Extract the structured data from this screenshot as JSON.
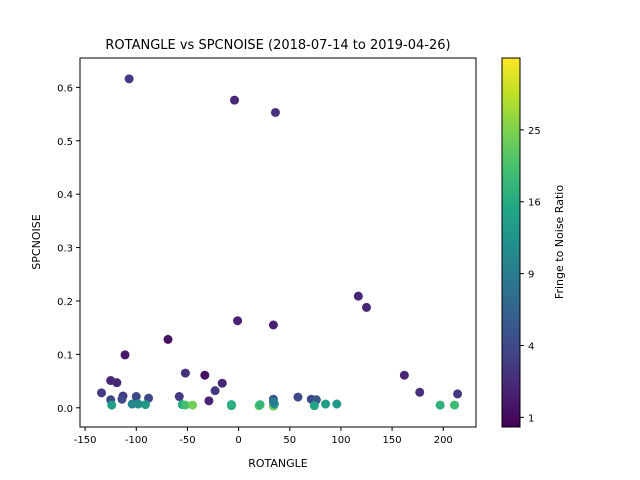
{
  "chart_data": {
    "type": "scatter",
    "title": "ROTANGLE vs SPCNOISE (2018-07-14 to 2019-04-26)",
    "xlabel": "ROTANGLE",
    "ylabel": "SPCNOISE",
    "xlim": [
      -155,
      232
    ],
    "ylim": [
      -0.036,
      0.655
    ],
    "xticks": [
      -150,
      -100,
      -50,
      0,
      50,
      100,
      150,
      200
    ],
    "yticks": [
      0.0,
      0.1,
      0.2,
      0.3,
      0.4,
      0.5,
      0.6
    ],
    "ytick_labels": [
      "0.0",
      "0.1",
      "0.2",
      "0.3",
      "0.4",
      "0.5",
      "0.6"
    ],
    "grid": false,
    "colorbar": {
      "label": "Fringe to Noise Ratio",
      "colormap": "viridis",
      "scale": "sqrt",
      "range": [
        0.75,
        36
      ],
      "ticks": [
        1,
        4,
        9,
        16,
        25
      ]
    },
    "points": [
      {
        "x": -107,
        "y": 0.616,
        "c": 3
      },
      {
        "x": -4,
        "y": 0.576,
        "c": 2
      },
      {
        "x": 36,
        "y": 0.553,
        "c": 2.5
      },
      {
        "x": 117,
        "y": 0.209,
        "c": 2
      },
      {
        "x": 125,
        "y": 0.188,
        "c": 2
      },
      {
        "x": -1,
        "y": 0.163,
        "c": 1.8
      },
      {
        "x": 34,
        "y": 0.155,
        "c": 1.8
      },
      {
        "x": -69,
        "y": 0.128,
        "c": 1.2
      },
      {
        "x": -111,
        "y": 0.099,
        "c": 1.5
      },
      {
        "x": -52,
        "y": 0.065,
        "c": 2.5
      },
      {
        "x": -33,
        "y": 0.061,
        "c": 1.2
      },
      {
        "x": 162,
        "y": 0.061,
        "c": 2
      },
      {
        "x": -125,
        "y": 0.051,
        "c": 2
      },
      {
        "x": -119,
        "y": 0.047,
        "c": 2
      },
      {
        "x": -16,
        "y": 0.046,
        "c": 2
      },
      {
        "x": -134,
        "y": 0.028,
        "c": 3
      },
      {
        "x": 177,
        "y": 0.029,
        "c": 2.5
      },
      {
        "x": 214,
        "y": 0.026,
        "c": 3
      },
      {
        "x": -23,
        "y": 0.032,
        "c": 3
      },
      {
        "x": -58,
        "y": 0.021,
        "c": 3
      },
      {
        "x": -113,
        "y": 0.022,
        "c": 3
      },
      {
        "x": -100,
        "y": 0.021,
        "c": 4
      },
      {
        "x": -88,
        "y": 0.018,
        "c": 4
      },
      {
        "x": -125,
        "y": 0.015,
        "c": 4
      },
      {
        "x": -114,
        "y": 0.016,
        "c": 4
      },
      {
        "x": 58,
        "y": 0.02,
        "c": 4
      },
      {
        "x": 71,
        "y": 0.016,
        "c": 4
      },
      {
        "x": 76,
        "y": 0.015,
        "c": 5
      },
      {
        "x": 34,
        "y": 0.016,
        "c": 5
      },
      {
        "x": -29,
        "y": 0.013,
        "c": 2
      },
      {
        "x": -124,
        "y": 0.005,
        "c": 14
      },
      {
        "x": -104,
        "y": 0.007,
        "c": 10
      },
      {
        "x": -98,
        "y": 0.007,
        "c": 11
      },
      {
        "x": -91,
        "y": 0.006,
        "c": 13
      },
      {
        "x": -55,
        "y": 0.006,
        "c": 16
      },
      {
        "x": -52,
        "y": 0.005,
        "c": 20
      },
      {
        "x": -45,
        "y": 0.005,
        "c": 24
      },
      {
        "x": -7,
        "y": 0.006,
        "c": 14
      },
      {
        "x": -7,
        "y": 0.004,
        "c": 17
      },
      {
        "x": 20,
        "y": 0.004,
        "c": 22
      },
      {
        "x": 21,
        "y": 0.006,
        "c": 18
      },
      {
        "x": 34,
        "y": 0.003,
        "c": 24
      },
      {
        "x": 35,
        "y": 0.007,
        "c": 12
      },
      {
        "x": 34,
        "y": 0.011,
        "c": 9
      },
      {
        "x": 74,
        "y": 0.004,
        "c": 15
      },
      {
        "x": 85,
        "y": 0.007,
        "c": 14
      },
      {
        "x": 96,
        "y": 0.007,
        "c": 13
      },
      {
        "x": 197,
        "y": 0.005,
        "c": 17
      },
      {
        "x": 211,
        "y": 0.005,
        "c": 19
      }
    ]
  }
}
